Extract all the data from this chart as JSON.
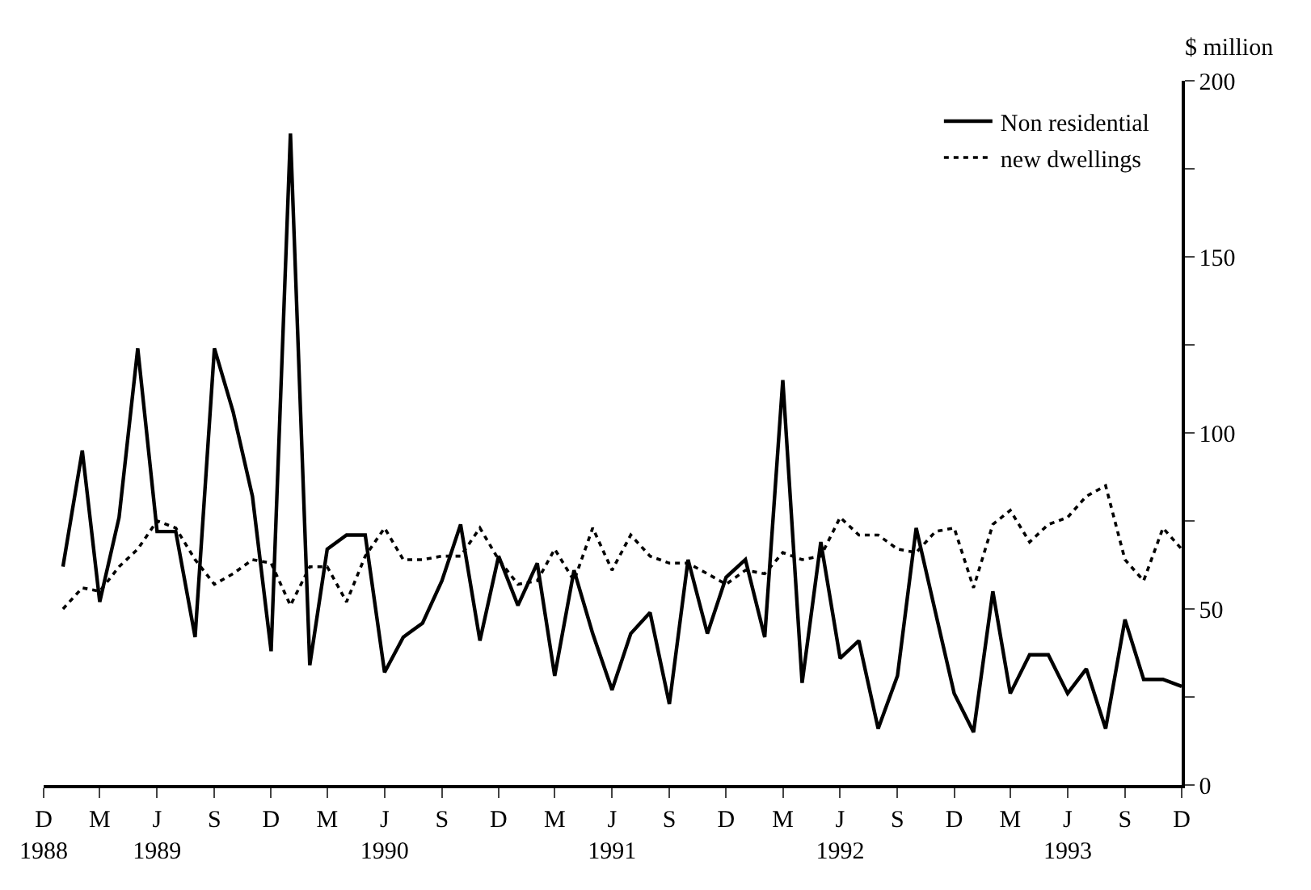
{
  "chart_data": {
    "type": "line",
    "ylabel": "$ million",
    "x": [
      "1989-01",
      "1989-02",
      "1989-03",
      "1989-04",
      "1989-05",
      "1989-06",
      "1989-07",
      "1989-08",
      "1989-09",
      "1989-10",
      "1989-11",
      "1989-12",
      "1990-01",
      "1990-02",
      "1990-03",
      "1990-04",
      "1990-05",
      "1990-06",
      "1990-07",
      "1990-08",
      "1990-09",
      "1990-10",
      "1990-11",
      "1990-12",
      "1991-01",
      "1991-02",
      "1991-03",
      "1991-04",
      "1991-05",
      "1991-06",
      "1991-07",
      "1991-08",
      "1991-09",
      "1991-10",
      "1991-11",
      "1991-12",
      "1992-01",
      "1992-02",
      "1992-03",
      "1992-04",
      "1992-05",
      "1992-06",
      "1992-07",
      "1992-08",
      "1992-09",
      "1992-10",
      "1992-11",
      "1992-12",
      "1993-01",
      "1993-02",
      "1993-03",
      "1993-04",
      "1993-05",
      "1993-06",
      "1993-07",
      "1993-08",
      "1993-09",
      "1993-10",
      "1993-11",
      "1993-12"
    ],
    "series": [
      {
        "name": "Non residential",
        "color": "#000000",
        "line_style": "solid",
        "values": [
          62,
          95,
          52,
          76,
          124,
          72,
          72,
          42,
          124,
          106,
          82,
          38,
          185,
          34,
          67,
          71,
          71,
          32,
          42,
          46,
          58,
          74,
          41,
          65,
          51,
          63,
          31,
          61,
          43,
          27,
          43,
          49,
          23,
          64,
          43,
          59,
          64,
          42,
          115,
          29,
          69,
          36,
          41,
          16,
          31,
          73,
          49,
          26,
          15,
          55,
          26,
          37,
          37,
          26,
          33,
          16,
          47,
          30,
          30,
          28
        ]
      },
      {
        "name": "new dwellings",
        "color": "#000000",
        "line_style": "dotted",
        "values": [
          50,
          56,
          55,
          62,
          67,
          75,
          73,
          64,
          57,
          60,
          64,
          63,
          51,
          62,
          62,
          52,
          65,
          73,
          64,
          64,
          65,
          65,
          73,
          64,
          57,
          58,
          67,
          58,
          73,
          61,
          71,
          65,
          63,
          63,
          60,
          57,
          61,
          60,
          66,
          64,
          65,
          76,
          71,
          71,
          67,
          66,
          72,
          73,
          56,
          74,
          78,
          69,
          74,
          76,
          82,
          85,
          64,
          58,
          73,
          67
        ]
      }
    ],
    "xlim": [
      "1988-12",
      "1993-12"
    ],
    "xticks": [
      {
        "value": "1988-12",
        "label": "D\n1988"
      },
      {
        "value": "1989-03",
        "label": "M"
      },
      {
        "value": "1989-06",
        "label": "J\n1989"
      },
      {
        "value": "1989-09",
        "label": "S"
      },
      {
        "value": "1989-12",
        "label": "D"
      },
      {
        "value": "1990-03",
        "label": "M"
      },
      {
        "value": "1990-06",
        "label": "J\n1990"
      },
      {
        "value": "1990-09",
        "label": "S"
      },
      {
        "value": "1990-12",
        "label": "D"
      },
      {
        "value": "1991-03",
        "label": "M"
      },
      {
        "value": "1991-06",
        "label": "J\n1991"
      },
      {
        "value": "1991-09",
        "label": "S"
      },
      {
        "value": "1991-12",
        "label": "D"
      },
      {
        "value": "1992-03",
        "label": "M"
      },
      {
        "value": "1992-06",
        "label": "J\n1992"
      },
      {
        "value": "1992-09",
        "label": "S"
      },
      {
        "value": "1992-12",
        "label": "D"
      },
      {
        "value": "1993-03",
        "label": "M"
      },
      {
        "value": "1993-06",
        "label": "J\n1993"
      },
      {
        "value": "1993-09",
        "label": "S"
      },
      {
        "value": "1993-12",
        "label": "D"
      }
    ],
    "ylim": [
      0,
      200
    ],
    "yticks": [
      0,
      {
        "value": 25,
        "label": null
      },
      50,
      {
        "value": 75,
        "label": null
      },
      100,
      {
        "value": 125,
        "label": null
      },
      150,
      {
        "value": 175,
        "label": null
      },
      200
    ],
    "legend": "top right",
    "marker": "none"
  }
}
